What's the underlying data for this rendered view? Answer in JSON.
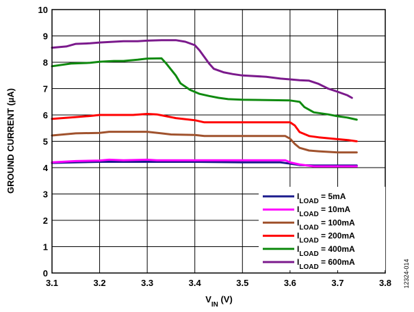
{
  "figure_id": "12324-014",
  "chart_data": {
    "type": "line",
    "xlabel": "V",
    "xlabel_sub": "IN",
    "xlabel_unit": " (V)",
    "ylabel": "GROUND CURRENT (µA)",
    "xlim": [
      3.1,
      3.8
    ],
    "ylim": [
      0,
      10
    ],
    "xticks": [
      3.1,
      3.2,
      3.3,
      3.4,
      3.5,
      3.6,
      3.7,
      3.8
    ],
    "xtick_labels": [
      "3.1",
      "3.2",
      "3.3",
      "3.4",
      "3.5",
      "3.6",
      "3.7",
      "3.8"
    ],
    "yticks": [
      0,
      1,
      2,
      3,
      4,
      5,
      6,
      7,
      8,
      9,
      10
    ],
    "ytick_labels": [
      "0",
      "1",
      "2",
      "3",
      "4",
      "5",
      "6",
      "7",
      "8",
      "9",
      "10"
    ],
    "grid": true,
    "legend_position": "bottom-right",
    "series": [
      {
        "name_main": "I",
        "name_sub": "LOAD",
        "name_rest": " = 5mA",
        "color": "#1a1a8c",
        "x": [
          3.1,
          3.15,
          3.2,
          3.3,
          3.4,
          3.5,
          3.58,
          3.6,
          3.62,
          3.65,
          3.7,
          3.74
        ],
        "y": [
          4.18,
          4.2,
          4.22,
          4.22,
          4.22,
          4.2,
          4.2,
          4.15,
          4.1,
          4.08,
          4.08,
          4.08
        ]
      },
      {
        "name_main": "I",
        "name_sub": "LOAD",
        "name_rest": " = 10mA",
        "color": "#ff00ff",
        "x": [
          3.1,
          3.15,
          3.2,
          3.22,
          3.25,
          3.3,
          3.32,
          3.4,
          3.5,
          3.59,
          3.6,
          3.62,
          3.65,
          3.7,
          3.74
        ],
        "y": [
          4.2,
          4.25,
          4.27,
          4.3,
          4.28,
          4.3,
          4.28,
          4.28,
          4.28,
          4.28,
          4.2,
          4.12,
          4.05,
          4.05,
          4.05
        ]
      },
      {
        "name_main": "I",
        "name_sub": "LOAD",
        "name_rest": " = 100mA",
        "color": "#a0522d",
        "x": [
          3.1,
          3.15,
          3.2,
          3.22,
          3.3,
          3.33,
          3.35,
          3.4,
          3.42,
          3.5,
          3.59,
          3.6,
          3.61,
          3.62,
          3.64,
          3.66,
          3.7,
          3.74
        ],
        "y": [
          5.22,
          5.3,
          5.32,
          5.36,
          5.36,
          5.3,
          5.26,
          5.24,
          5.2,
          5.2,
          5.2,
          5.1,
          4.9,
          4.75,
          4.65,
          4.62,
          4.58,
          4.58
        ]
      },
      {
        "name_main": "I",
        "name_sub": "LOAD",
        "name_rest": " = 200mA",
        "color": "#ff0000",
        "x": [
          3.1,
          3.15,
          3.18,
          3.2,
          3.27,
          3.3,
          3.32,
          3.34,
          3.36,
          3.4,
          3.42,
          3.5,
          3.6,
          3.61,
          3.62,
          3.64,
          3.66,
          3.7,
          3.72,
          3.74
        ],
        "y": [
          5.85,
          5.92,
          5.96,
          6.0,
          6.0,
          6.04,
          6.02,
          5.95,
          5.88,
          5.8,
          5.72,
          5.72,
          5.72,
          5.6,
          5.35,
          5.2,
          5.15,
          5.08,
          5.05,
          5.0
        ]
      },
      {
        "name_main": "I",
        "name_sub": "LOAD",
        "name_rest": " = 400mA",
        "color": "#0f8a0f",
        "x": [
          3.1,
          3.14,
          3.18,
          3.2,
          3.23,
          3.25,
          3.28,
          3.3,
          3.33,
          3.34,
          3.36,
          3.37,
          3.39,
          3.41,
          3.43,
          3.45,
          3.47,
          3.5,
          3.6,
          3.62,
          3.63,
          3.65,
          3.68,
          3.7,
          3.72,
          3.74
        ],
        "y": [
          7.85,
          7.95,
          7.98,
          8.02,
          8.05,
          8.05,
          8.1,
          8.14,
          8.15,
          7.95,
          7.5,
          7.2,
          6.95,
          6.8,
          6.72,
          6.65,
          6.6,
          6.58,
          6.55,
          6.5,
          6.3,
          6.1,
          6.02,
          5.95,
          5.9,
          5.82
        ]
      },
      {
        "name_main": "I",
        "name_sub": "LOAD",
        "name_rest": " = 600mA",
        "color": "#7b1a8c",
        "x": [
          3.1,
          3.13,
          3.15,
          3.18,
          3.2,
          3.23,
          3.25,
          3.28,
          3.3,
          3.33,
          3.36,
          3.38,
          3.4,
          3.41,
          3.42,
          3.43,
          3.44,
          3.46,
          3.48,
          3.5,
          3.55,
          3.58,
          3.6,
          3.62,
          3.64,
          3.66,
          3.68,
          3.7,
          3.72,
          3.73
        ],
        "y": [
          8.55,
          8.6,
          8.7,
          8.72,
          8.75,
          8.78,
          8.8,
          8.8,
          8.82,
          8.84,
          8.84,
          8.78,
          8.65,
          8.45,
          8.2,
          7.95,
          7.75,
          7.62,
          7.55,
          7.5,
          7.45,
          7.38,
          7.35,
          7.32,
          7.3,
          7.18,
          7.0,
          6.88,
          6.75,
          6.65
        ]
      }
    ]
  }
}
